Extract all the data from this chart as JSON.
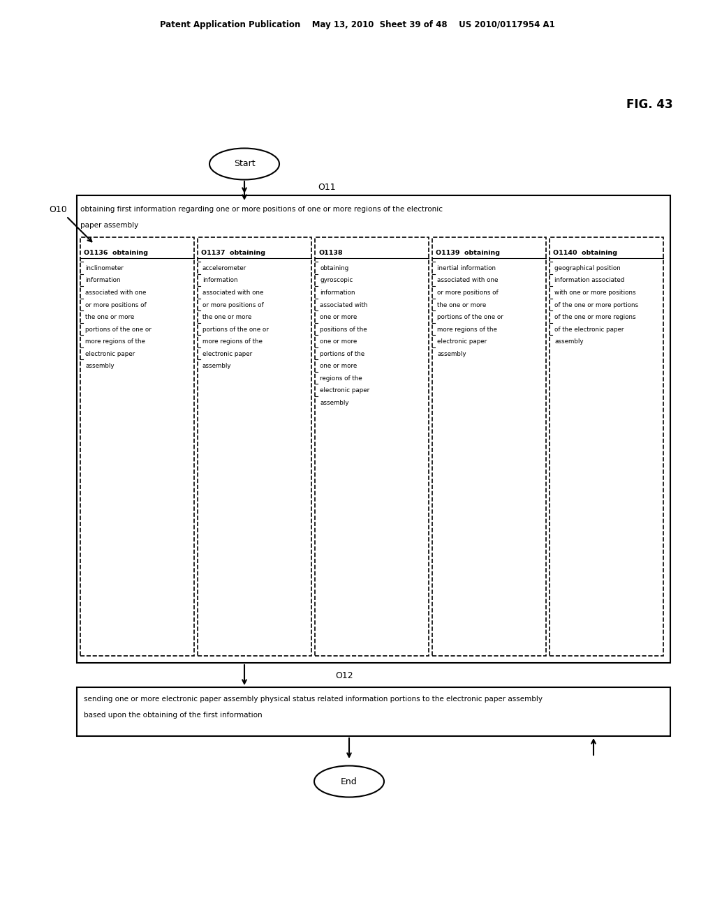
{
  "fig_label": "FIG. 43",
  "patent_header": "Patent Application Publication    May 13, 2010  Sheet 39 of 48    US 2010/0117954 A1",
  "start_label": "Start",
  "end_label": "End",
  "o10_label": "O10",
  "o11_label": "O11",
  "o12_label": "O12",
  "outer_box_text_top": "obtaining first information regarding one or more positions of one or more regions of the electronic",
  "outer_box_text_top2": "paper assembly",
  "inner_boxes": [
    {
      "id": "O1136",
      "title": "O1136  obtaining",
      "lines": [
        "inclinometer",
        "information",
        "associated with one",
        "or more positions of",
        "the one or more",
        "portions of the one or",
        "more regions of the",
        "electronic paper",
        "assembly"
      ]
    },
    {
      "id": "O1137",
      "title": "O1137  obtaining",
      "lines": [
        "accelerometer",
        "information",
        "associated with one",
        "or more positions of",
        "the one or more",
        "portions of the one or",
        "more regions of the",
        "electronic paper",
        "assembly"
      ]
    },
    {
      "id": "O1138",
      "title": "O1138",
      "lines": [
        "obtaining",
        "gyroscopic",
        "information",
        "associated with",
        "one or more",
        "positions of the",
        "one or more",
        "portions of the",
        "one or more",
        "regions of the",
        "electronic paper",
        "assembly"
      ]
    },
    {
      "id": "O1139",
      "title": "O1139  obtaining",
      "lines": [
        "inertial information",
        "associated with one",
        "or more positions of",
        "the one or more",
        "portions of the one or",
        "more regions of the",
        "electronic paper",
        "assembly"
      ]
    },
    {
      "id": "O1140",
      "title": "O1140  obtaining",
      "lines": [
        "geographical position",
        "information associated",
        "with one or more positions",
        "of the one or more portions",
        "of the one or more regions",
        "of the electronic paper",
        "assembly"
      ]
    }
  ],
  "bottom_box_lines": [
    "sending one or more electronic paper assembly physical status related information portions to the electronic paper assembly",
    "based upon the obtaining of the first information"
  ]
}
